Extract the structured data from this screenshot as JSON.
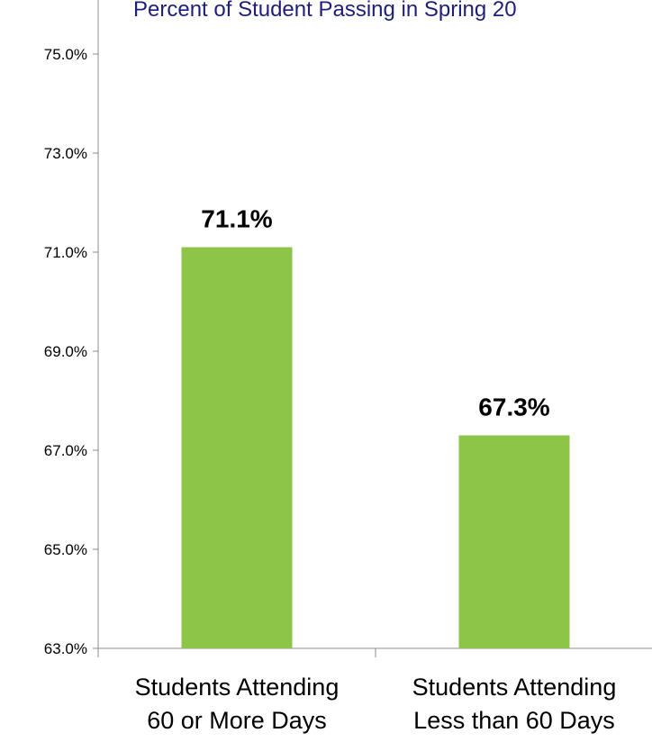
{
  "chart_data": {
    "type": "bar",
    "title": "Percent of Student Passing in Spring 20",
    "categories": [
      [
        "Students Attending",
        "60 or More Days"
      ],
      [
        "Students Attending",
        "Less than 60 Days"
      ]
    ],
    "values": [
      71.1,
      67.3
    ],
    "data_labels": [
      "71.1%",
      "67.3%"
    ],
    "ylim": [
      63.0,
      75.0
    ],
    "y_ticks": [
      63.0,
      65.0,
      67.0,
      69.0,
      71.0,
      73.0,
      75.0
    ],
    "y_tick_labels": [
      "63.0%",
      "65.0%",
      "67.0%",
      "69.0%",
      "71.0%",
      "73.0%",
      "75.0%"
    ],
    "grid": false,
    "legend": "none",
    "xlabel": "",
    "ylabel": "",
    "colors": {
      "bar": "#8DC548",
      "title": "#1F1F7A",
      "axis": "#8C8C8C"
    }
  }
}
